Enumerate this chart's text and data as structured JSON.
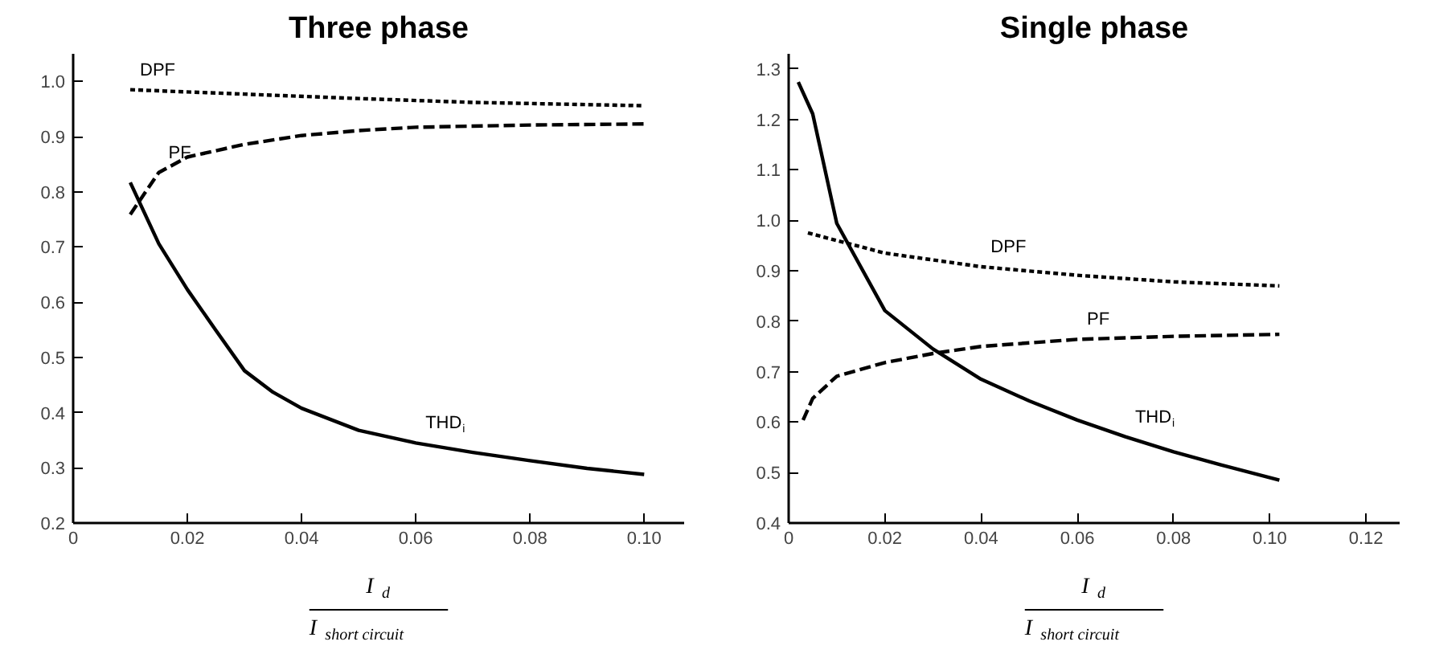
{
  "chart_data": [
    {
      "type": "line",
      "title": "Three phase",
      "xlabel": "I$_{d}$ I$_{short circuit}$",
      "xlim": [
        0,
        0.107
      ],
      "ylim": [
        0.2,
        1.05
      ],
      "xticks": [
        0,
        0.02,
        0.04,
        0.06,
        0.08,
        {
          "value": 0.1,
          "label": "0.10"
        }
      ],
      "yticks": [
        0.2,
        0.3,
        0.4,
        0.5,
        0.6,
        0.7,
        0.8,
        0.9,
        {
          "value": 1.0,
          "label": "1.0"
        }
      ],
      "series": [
        {
          "name": "DPF",
          "color": "#000000",
          "line_style": "dotted",
          "x": [
            0.01,
            0.03,
            0.05,
            0.07,
            0.1
          ],
          "values": [
            0.985,
            0.977,
            0.969,
            0.962,
            0.956
          ]
        },
        {
          "name": "PF",
          "color": "#000000",
          "line_style": "dashed",
          "x": [
            0.01,
            0.015,
            0.02,
            0.03,
            0.04,
            0.05,
            0.06,
            0.08,
            0.1
          ],
          "values": [
            0.759,
            0.835,
            0.863,
            0.886,
            0.902,
            0.911,
            0.917,
            0.921,
            0.923
          ]
        },
        {
          "name": "THD$_{i}$",
          "color": "#000000",
          "line_style": "solid",
          "x": [
            0.01,
            0.015,
            0.02,
            0.025,
            0.03,
            0.035,
            0.04,
            0.05,
            0.06,
            0.07,
            0.08,
            0.09,
            0.1
          ],
          "values": [
            0.817,
            0.706,
            0.623,
            0.549,
            0.476,
            0.437,
            0.408,
            0.368,
            0.345,
            0.328,
            0.313,
            0.299,
            0.288
          ]
        }
      ]
    },
    {
      "type": "line",
      "title": "Single phase",
      "xlabel": "I$_{d}$ I$_{short circuit}$",
      "xlim": [
        0,
        0.127
      ],
      "ylim": [
        0.4,
        1.33
      ],
      "xticks": [
        0,
        0.02,
        0.04,
        0.06,
        0.08,
        {
          "value": 0.1,
          "label": "0.10"
        },
        0.12
      ],
      "yticks": [
        0.4,
        0.5,
        0.6,
        0.7,
        0.8,
        0.9,
        {
          "value": 1.0,
          "label": "1.0"
        },
        1.1,
        1.2,
        1.3
      ],
      "series": [
        {
          "name": "DPF",
          "color": "#000000",
          "line_style": "dotted",
          "x": [
            0.004,
            0.02,
            0.04,
            0.06,
            0.08,
            0.102
          ],
          "values": [
            0.975,
            0.935,
            0.908,
            0.891,
            0.878,
            0.87
          ]
        },
        {
          "name": "PF",
          "color": "#000000",
          "line_style": "dashed",
          "x": [
            0.003,
            0.005,
            0.01,
            0.02,
            0.03,
            0.04,
            0.06,
            0.08,
            0.102
          ],
          "values": [
            0.604,
            0.647,
            0.691,
            0.718,
            0.736,
            0.75,
            0.764,
            0.77,
            0.774
          ]
        },
        {
          "name": "THD$_{i}$",
          "color": "#000000",
          "line_style": "solid",
          "x": [
            0.002,
            0.005,
            0.01,
            0.02,
            0.03,
            0.04,
            0.05,
            0.06,
            0.07,
            0.08,
            0.09,
            0.102
          ],
          "values": [
            1.274,
            1.211,
            0.994,
            0.821,
            0.745,
            0.685,
            0.642,
            0.604,
            0.571,
            0.541,
            0.515,
            0.485
          ]
        }
      ]
    }
  ]
}
